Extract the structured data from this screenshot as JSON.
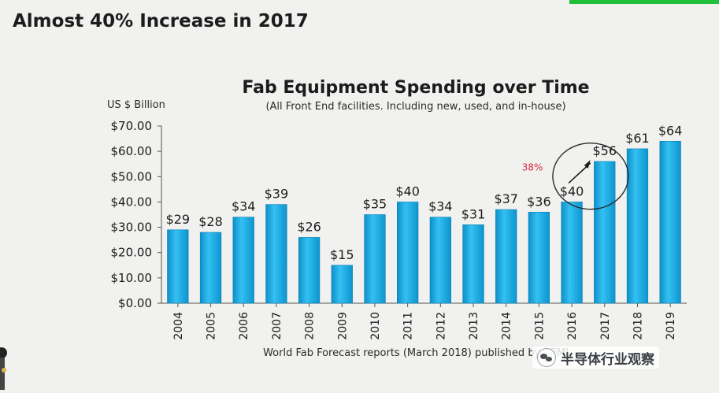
{
  "slide": {
    "title": "Almost 40% Increase in 2017"
  },
  "watermark": {
    "text": "半导体行业观察",
    "icon": "wechat-icon"
  },
  "chart_data": {
    "type": "bar",
    "title": "Fab Equipment Spending over Time",
    "subtitle": "(All Front End facilities. Including new, used, and in-house)",
    "ylabel": "US $ Billion",
    "xlabel": "",
    "source": "World Fab Forecast reports (March 2018) published by SEMI",
    "ylim": [
      0,
      70
    ],
    "y_ticks": [
      "$0.00",
      "$10.00",
      "$20.00",
      "$30.00",
      "$40.00",
      "$50.00",
      "$60.00",
      "$70.00"
    ],
    "y_tick_values": [
      0,
      10,
      20,
      30,
      40,
      50,
      60,
      70
    ],
    "categories": [
      "2004",
      "2005",
      "2006",
      "2007",
      "2008",
      "2009",
      "2010",
      "2011",
      "2012",
      "2013",
      "2014",
      "2015",
      "2016",
      "2017",
      "2018",
      "2019"
    ],
    "values": [
      29,
      28,
      34,
      39,
      26,
      15,
      35,
      40,
      34,
      31,
      37,
      36,
      40,
      56,
      61,
      64
    ],
    "data_labels": [
      "$29",
      "$28",
      "$34",
      "$39",
      "$26",
      "$15",
      "$35",
      "$40",
      "$34",
      "$31",
      "$37",
      "$36",
      "$40",
      "$56",
      "$61",
      "$64"
    ],
    "annotation": {
      "text": "38%",
      "from_category": "2016",
      "to_category": "2017",
      "color": "#d7263d"
    },
    "bar_color": "#1aa7e0",
    "grid": false,
    "legend": "none"
  }
}
